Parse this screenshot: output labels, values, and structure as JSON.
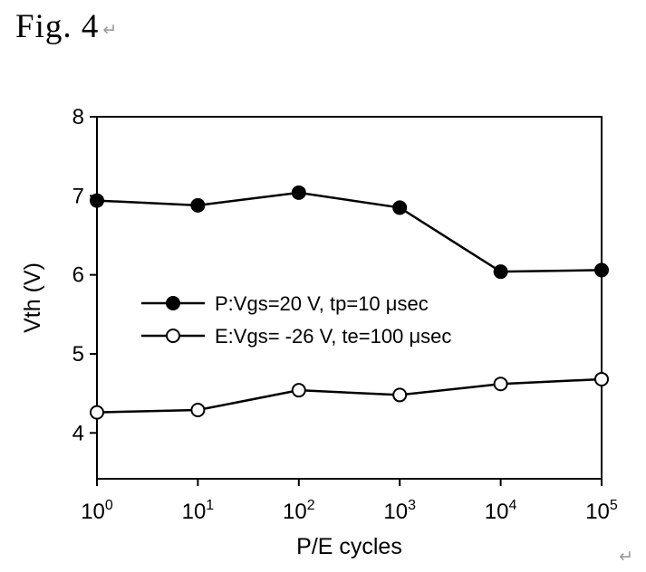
{
  "figure": {
    "label": "Fig. 4",
    "return_mark": "↵"
  },
  "chart_data": {
    "type": "line",
    "title": "",
    "xlabel": "P/E cycles",
    "ylabel": "Vth (V)",
    "x_scale": "log",
    "grid": false,
    "legend_position": "inside-center-left",
    "x": [
      1,
      10,
      100,
      1000,
      10000,
      100000
    ],
    "x_tick_labels": [
      {
        "base": "10",
        "exp": "0"
      },
      {
        "base": "10",
        "exp": "1"
      },
      {
        "base": "10",
        "exp": "2"
      },
      {
        "base": "10",
        "exp": "3"
      },
      {
        "base": "10",
        "exp": "4"
      },
      {
        "base": "10",
        "exp": "5"
      }
    ],
    "xlim_decades": [
      0,
      5
    ],
    "y_ticks": [
      8,
      7,
      6,
      5,
      4
    ],
    "ylim": [
      3.42,
      8
    ],
    "series": [
      {
        "name": "P:Vgs=20 V, tp=10 μsec",
        "marker": "filled-circle",
        "values": [
          6.94,
          6.88,
          7.04,
          6.85,
          6.04,
          6.06
        ]
      },
      {
        "name": "E:Vgs= -26 V, te=100 μsec",
        "marker": "open-circle",
        "values": [
          4.26,
          4.29,
          4.54,
          4.48,
          4.62,
          4.68
        ]
      }
    ],
    "colors": {
      "line": "#000000",
      "marker_fill": "#000000",
      "marker_open_fill": "#ffffff",
      "background": "#ffffff",
      "return_mark": "#9a9a9a"
    }
  }
}
